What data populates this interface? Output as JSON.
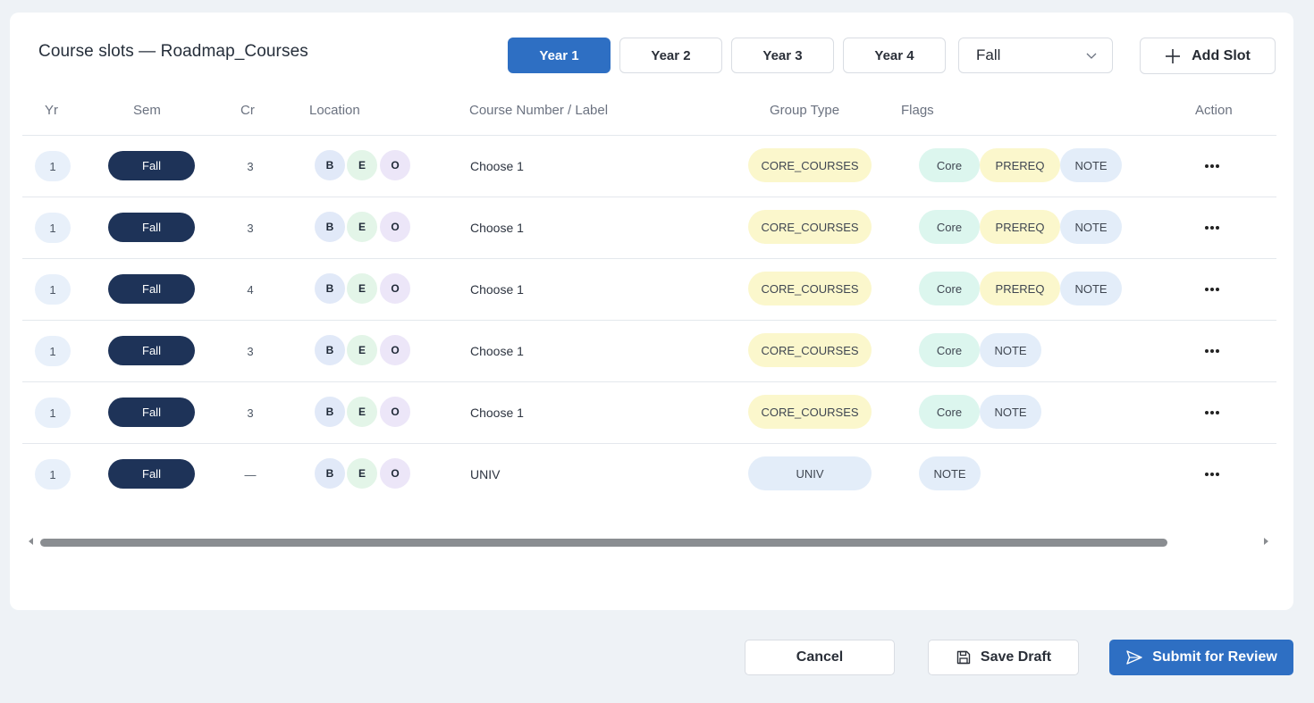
{
  "panel": {
    "title": "Course slots — Roadmap_Courses",
    "year_tabs": [
      {
        "label": "Year 1",
        "active": true
      },
      {
        "label": "Year 2",
        "active": false
      },
      {
        "label": "Year 3",
        "active": false
      },
      {
        "label": "Year 4",
        "active": false
      }
    ],
    "semester_select": {
      "value": "Fall",
      "icon": "chevron-down-icon"
    },
    "add_slot": {
      "label": "Add Slot",
      "icon": "plus-icon"
    }
  },
  "table": {
    "columns": [
      "Yr",
      "Sem",
      "Cr",
      "Location",
      "Course Number / Label",
      "Group Type",
      "Flags",
      "Action"
    ],
    "rows": [
      {
        "yr": "1",
        "sem": "Fall",
        "cr": "3",
        "loc": [
          "B",
          "E",
          "O"
        ],
        "course": "Choose 1",
        "group": "CORE_COURSES",
        "flags": [
          "Core",
          "PREREQ",
          "NOTE"
        ]
      },
      {
        "yr": "1",
        "sem": "Fall",
        "cr": "3",
        "loc": [
          "B",
          "E",
          "O"
        ],
        "course": "Choose 1",
        "group": "CORE_COURSES",
        "flags": [
          "Core",
          "PREREQ",
          "NOTE"
        ]
      },
      {
        "yr": "1",
        "sem": "Fall",
        "cr": "4",
        "loc": [
          "B",
          "E",
          "O"
        ],
        "course": "Choose 1",
        "group": "CORE_COURSES",
        "flags": [
          "Core",
          "PREREQ",
          "NOTE"
        ]
      },
      {
        "yr": "1",
        "sem": "Fall",
        "cr": "3",
        "loc": [
          "B",
          "E",
          "O"
        ],
        "course": "Choose 1",
        "group": "CORE_COURSES",
        "flags": [
          "Core",
          "NOTE"
        ]
      },
      {
        "yr": "1",
        "sem": "Fall",
        "cr": "3",
        "loc": [
          "B",
          "E",
          "O"
        ],
        "course": "Choose 1",
        "group": "CORE_COURSES",
        "flags": [
          "Core",
          "NOTE"
        ]
      },
      {
        "yr": "1",
        "sem": "Fall",
        "cr": "—",
        "loc": [
          "B",
          "E",
          "O"
        ],
        "course": "UNIV",
        "group": "UNIV",
        "flags": [
          "NOTE"
        ]
      }
    ],
    "action_icon": "more-horizontal-icon"
  },
  "footer": {
    "cancel": "Cancel",
    "save_draft": "Save Draft",
    "save_draft_icon": "save-icon",
    "submit": "Submit for Review",
    "submit_icon": "send-icon"
  },
  "colors": {
    "accent": "#2e6fc3",
    "semester_pill": "#1e3358",
    "core_group": "#fbf7cc",
    "univ_group": "#e3edf9",
    "core_flag": "#dcf6ee",
    "prereq_flag": "#fbf7cc",
    "note_flag": "#e3edf9"
  }
}
